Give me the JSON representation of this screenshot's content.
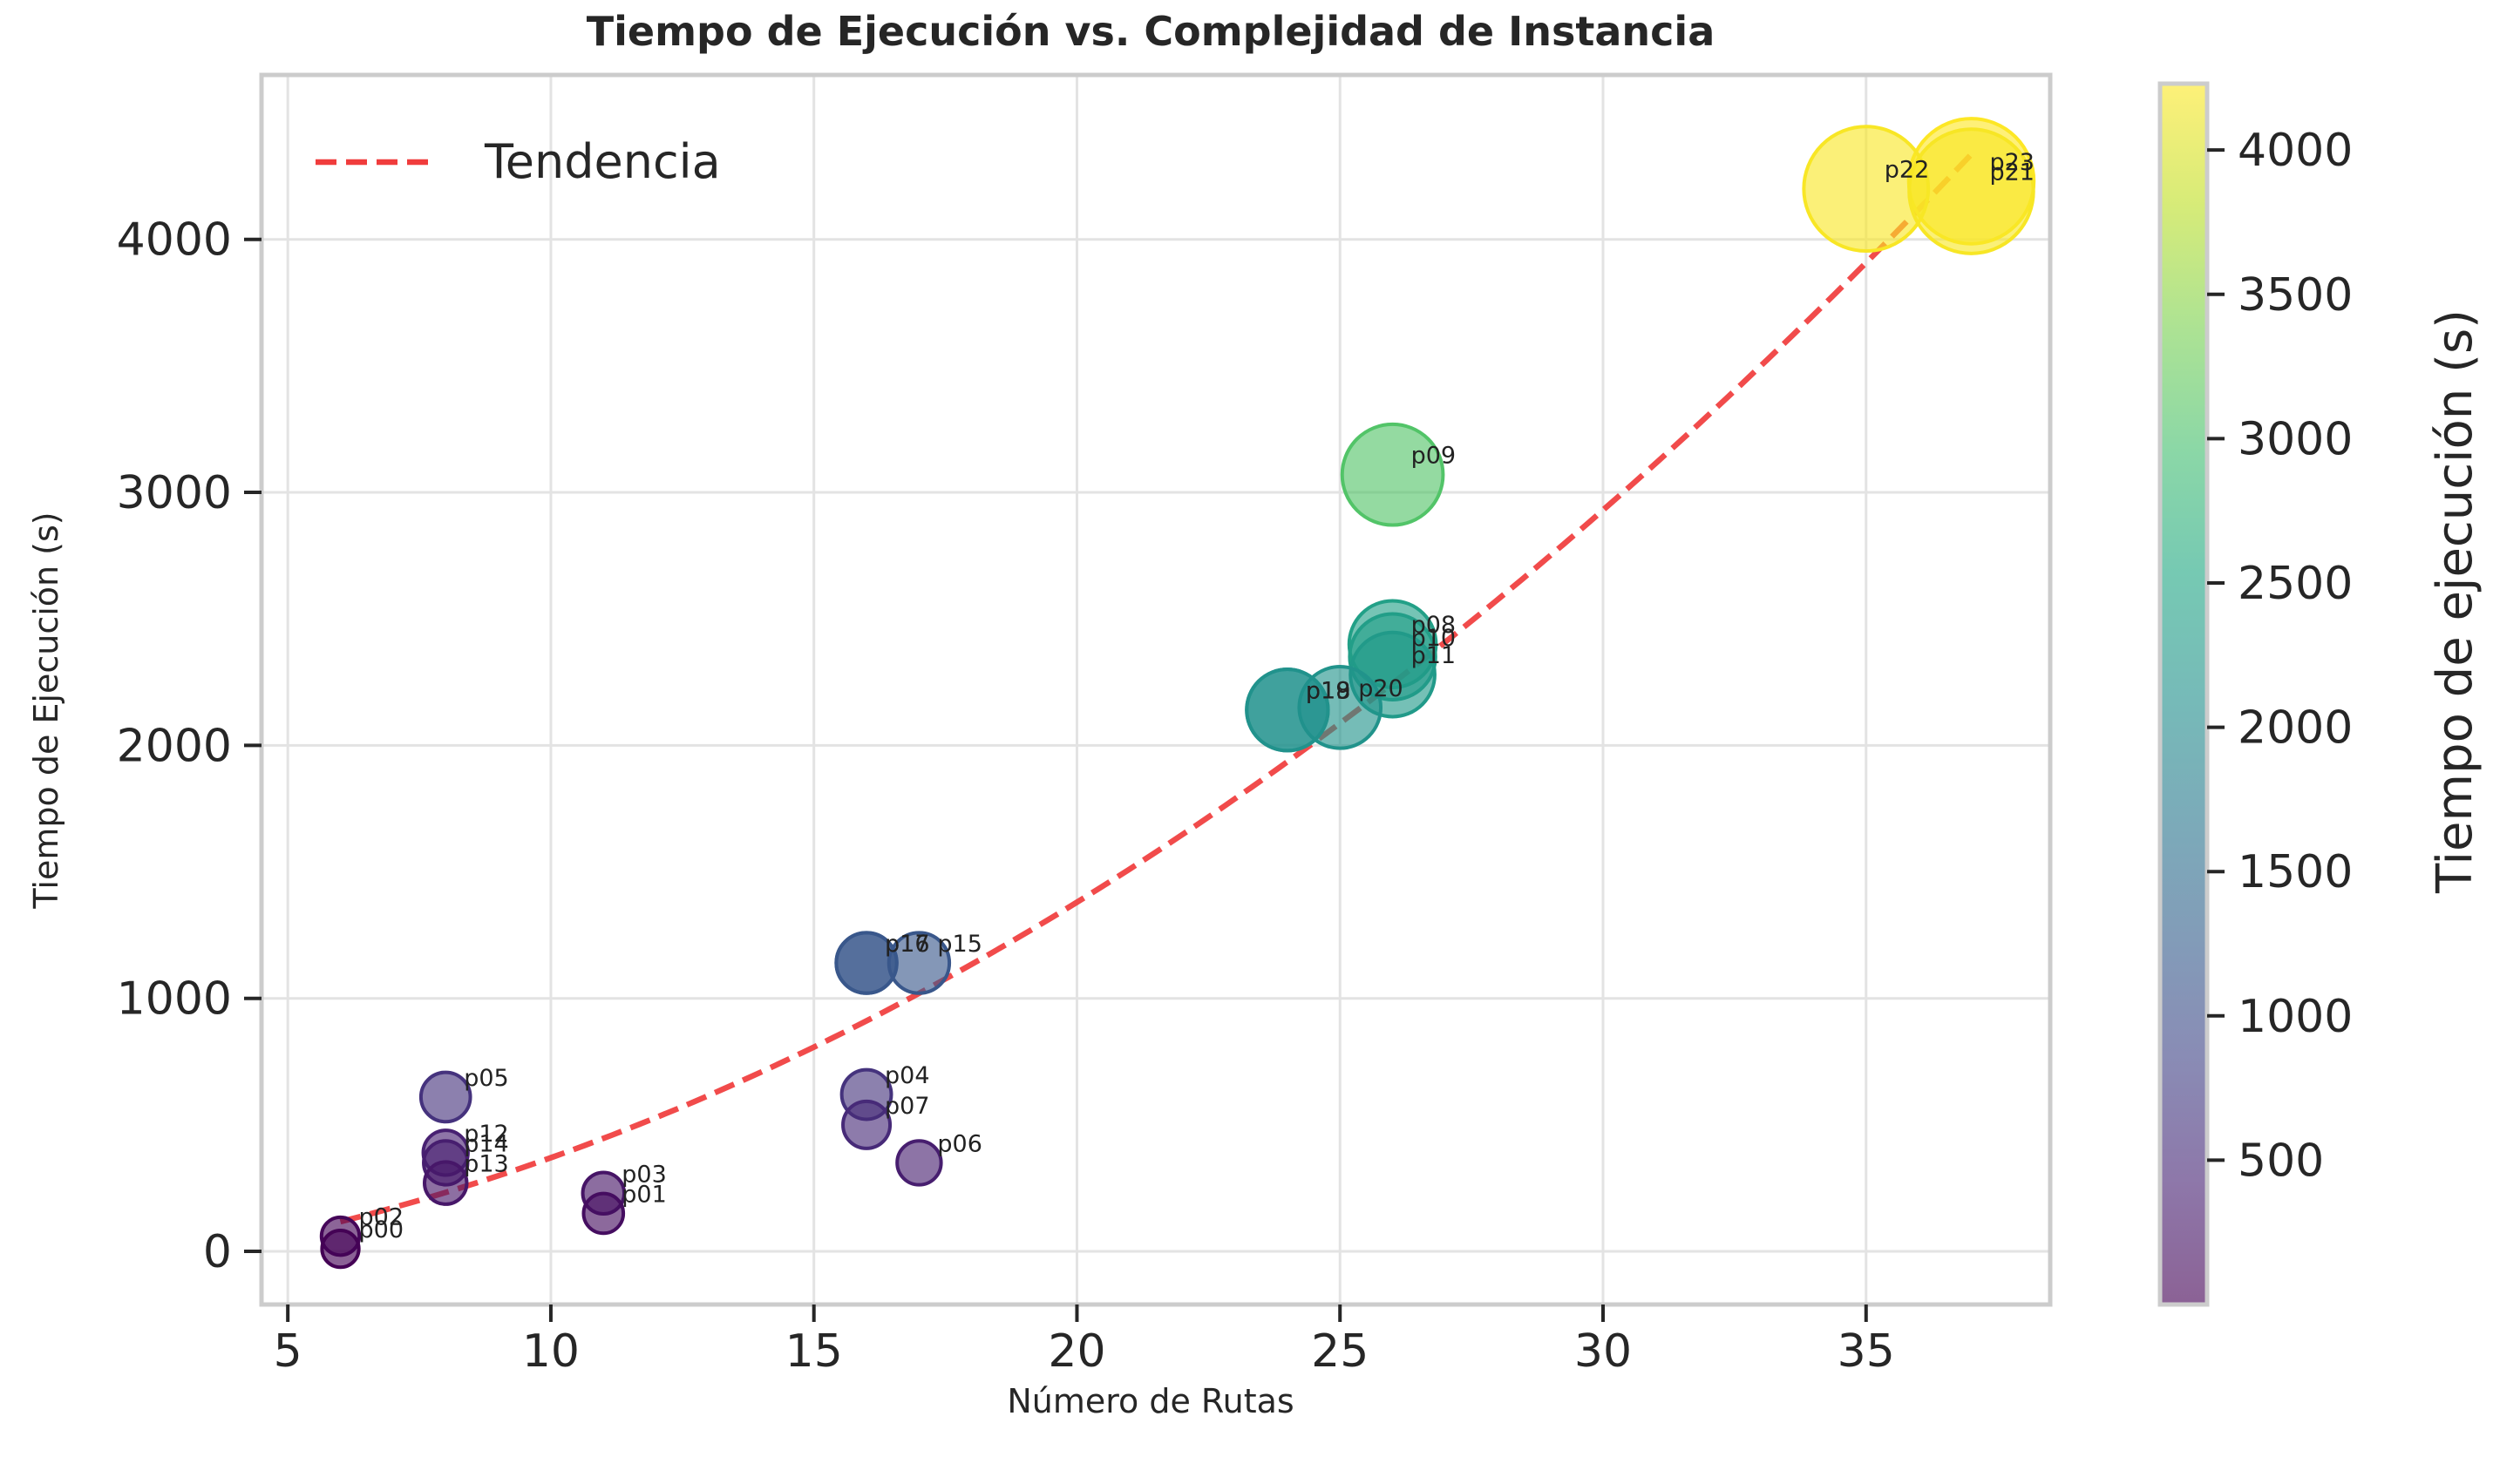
{
  "chart_data": {
    "type": "scatter",
    "title": "Tiempo de Ejecución vs. Complejidad de Instancia",
    "xlabel": "Número de Rutas",
    "ylabel": "Tiempo de Ejecución (s)",
    "xlim": [
      4.5,
      38.5
    ],
    "ylim": [
      -210,
      4650
    ],
    "xticks": [
      5,
      10,
      15,
      20,
      25,
      30,
      35
    ],
    "yticks": [
      0,
      1000,
      2000,
      3000,
      4000
    ],
    "grid": true,
    "legend": {
      "position": "top-left",
      "entries": [
        "Tendencia"
      ]
    },
    "colorbar": {
      "label": "Tiempo de ejecución (s)",
      "range": [
        0,
        4230
      ],
      "ticks": [
        500,
        1000,
        1500,
        2000,
        2500,
        3000,
        3500,
        4000
      ],
      "colormap": "viridis"
    },
    "trend": {
      "name": "Tendencia",
      "color": "#f03c3c",
      "style": "dashed",
      "x_range": [
        6,
        37
      ],
      "coefficients": [
        2.7,
        20,
        -100
      ]
    },
    "points": [
      {
        "label": "p00",
        "x": 6,
        "y": 10
      },
      {
        "label": "p02",
        "x": 6,
        "y": 60
      },
      {
        "label": "p05",
        "x": 8,
        "y": 610
      },
      {
        "label": "p12",
        "x": 8,
        "y": 390
      },
      {
        "label": "p14",
        "x": 8,
        "y": 350
      },
      {
        "label": "p13",
        "x": 8,
        "y": 270
      },
      {
        "label": "p03",
        "x": 11,
        "y": 230
      },
      {
        "label": "p01",
        "x": 11,
        "y": 150
      },
      {
        "label": "p04",
        "x": 16,
        "y": 620
      },
      {
        "label": "p07",
        "x": 16,
        "y": 500
      },
      {
        "label": "p06",
        "x": 17,
        "y": 350
      },
      {
        "label": "p16",
        "x": 16,
        "y": 1140
      },
      {
        "label": "p17",
        "x": 16,
        "y": 1140
      },
      {
        "label": "p15",
        "x": 17,
        "y": 1140
      },
      {
        "label": "p18",
        "x": 24,
        "y": 2140
      },
      {
        "label": "p19",
        "x": 24,
        "y": 2140
      },
      {
        "label": "p20",
        "x": 25,
        "y": 2150
      },
      {
        "label": "p08",
        "x": 26,
        "y": 2400
      },
      {
        "label": "p10",
        "x": 26,
        "y": 2350
      },
      {
        "label": "p11",
        "x": 26,
        "y": 2280
      },
      {
        "label": "p09",
        "x": 26,
        "y": 3070
      },
      {
        "label": "p22",
        "x": 35,
        "y": 4200
      },
      {
        "label": "p23",
        "x": 37,
        "y": 4230
      },
      {
        "label": "p21",
        "x": 37,
        "y": 4190
      }
    ]
  }
}
